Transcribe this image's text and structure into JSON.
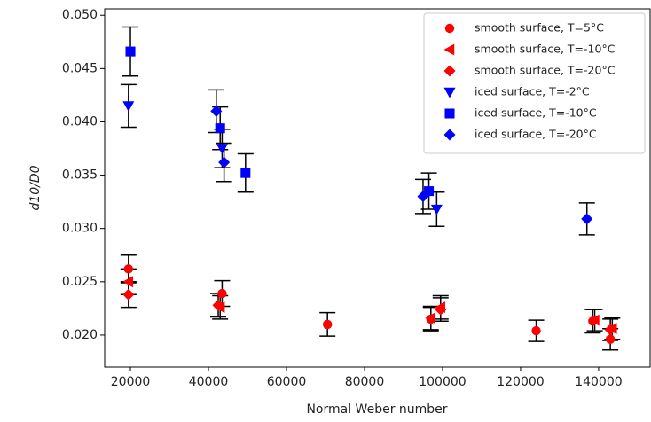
{
  "chart_data": {
    "type": "scatter",
    "xlabel": "Normal Weber number",
    "ylabel": "d10/D0",
    "xlim": [
      13400,
      153200
    ],
    "ylim": [
      0.017,
      0.0506
    ],
    "xticks": [
      20000,
      40000,
      60000,
      80000,
      100000,
      120000,
      140000
    ],
    "yticks": [
      {
        "value": 0.02,
        "label": "0.020"
      },
      {
        "value": 0.025,
        "label": "0.025"
      },
      {
        "value": 0.03,
        "label": "0.030"
      },
      {
        "value": 0.035,
        "label": "0.035"
      },
      {
        "value": 0.04,
        "label": "0.040"
      },
      {
        "value": 0.045,
        "label": "0.045"
      },
      {
        "value": 0.05,
        "label": "0.050"
      }
    ],
    "legend": "upper right",
    "series": [
      {
        "name": "smooth surface, T=5°C",
        "color": "#ff0000",
        "marker": "circle",
        "x": [
          19500,
          43500,
          70500,
          97000,
          124000,
          138500,
          143000
        ],
        "values": [
          0.0262,
          0.0239,
          0.021,
          0.0215,
          0.0204,
          0.0213,
          0.0196
        ],
        "errors": [
          0.0013,
          0.0012,
          0.0011,
          0.0011,
          0.001,
          0.0011,
          0.001
        ]
      },
      {
        "name": "smooth surface, T=-10°C",
        "color": "#ff0000",
        "marker": "triangle-left",
        "x": [
          19500,
          43000,
          97000,
          99500,
          139000,
          143500
        ],
        "values": [
          0.025,
          0.0226,
          0.0216,
          0.0226,
          0.0214,
          0.0206
        ],
        "errors": [
          0.0012,
          0.0011,
          0.0011,
          0.0011,
          0.001,
          0.001
        ]
      },
      {
        "name": "smooth surface, T=-20°C",
        "color": "#ff0000",
        "marker": "diamond",
        "x": [
          19500,
          42500,
          99500,
          143000
        ],
        "values": [
          0.0238,
          0.0228,
          0.0224,
          0.0205
        ],
        "errors": [
          0.0012,
          0.0011,
          0.0011,
          0.001
        ]
      },
      {
        "name": "iced surface, T=-2°C",
        "color": "#0000ff",
        "marker": "triangle-down",
        "x": [
          19500,
          43500,
          98500
        ],
        "values": [
          0.0415,
          0.0375,
          0.0318
        ],
        "errors": [
          0.002,
          0.0018,
          0.0016
        ]
      },
      {
        "name": "iced surface, T=-10°C",
        "color": "#0000ff",
        "marker": "square",
        "x": [
          20000,
          43000,
          49500,
          96500
        ],
        "values": [
          0.0466,
          0.0394,
          0.0352,
          0.0335
        ],
        "errors": [
          0.0023,
          0.002,
          0.0018,
          0.0017
        ]
      },
      {
        "name": "iced surface, T=-20°C",
        "color": "#0000ff",
        "marker": "diamond",
        "x": [
          42000,
          44000,
          95000,
          137000
        ],
        "values": [
          0.041,
          0.0362,
          0.033,
          0.0309
        ],
        "errors": [
          0.002,
          0.0018,
          0.0016,
          0.0015
        ]
      }
    ]
  }
}
